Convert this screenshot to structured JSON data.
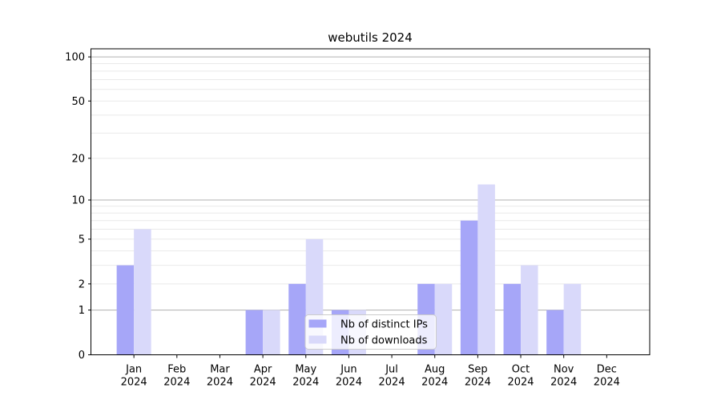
{
  "chart_data": {
    "type": "bar",
    "title": "webutils 2024",
    "categories": [
      "Jan 2024",
      "Feb 2024",
      "Mar 2024",
      "Apr 2024",
      "May 2024",
      "Jun 2024",
      "Jul 2024",
      "Aug 2024",
      "Sep 2024",
      "Oct 2024",
      "Nov 2024",
      "Dec 2024"
    ],
    "series": [
      {
        "name": "Nb of distinct IPs",
        "color": "#a6a6f8",
        "values": [
          3,
          0,
          0,
          1,
          2,
          1,
          0,
          2,
          7,
          2,
          1,
          0
        ]
      },
      {
        "name": "Nb of downloads",
        "color": "#d9d9fa",
        "values": [
          6,
          0,
          0,
          1,
          5,
          1,
          0,
          2,
          13,
          3,
          2,
          0
        ]
      }
    ],
    "xlabel": "",
    "ylabel": "",
    "y_scale": "log1p",
    "ylim": [
      0,
      113.5
    ],
    "y_tick_labels": [
      0,
      1,
      2,
      5,
      10,
      20,
      50,
      100
    ],
    "major_gridlines": [
      1,
      10,
      100
    ],
    "minor_gridlines": [
      2,
      3,
      4,
      5,
      6,
      7,
      8,
      9,
      20,
      30,
      40,
      50,
      60,
      70,
      80,
      90
    ],
    "grid": "on",
    "legend_position": "lower-center",
    "colors": {
      "grid_major": "#b0b0b0",
      "grid_minor": "#e9e9e9",
      "spine": "#000000",
      "legend_border": "#cccccc",
      "legend_bg": "rgba(255,255,255,0.8)"
    }
  }
}
